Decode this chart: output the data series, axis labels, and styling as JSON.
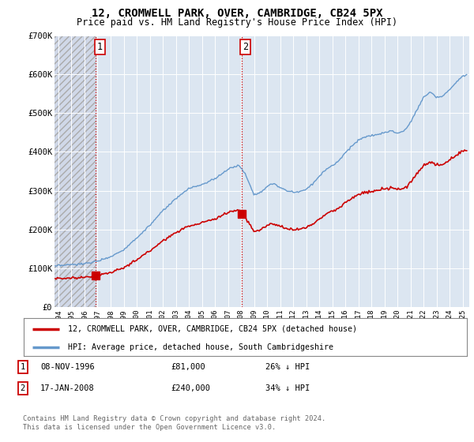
{
  "title": "12, CROMWELL PARK, OVER, CAMBRIDGE, CB24 5PX",
  "subtitle": "Price paid vs. HM Land Registry's House Price Index (HPI)",
  "background_color": "#ffffff",
  "plot_bg_color": "#dce6f1",
  "hatch_color": "#c0cfe0",
  "grid_color": "#ffffff",
  "hpi_color": "#6699cc",
  "price_color": "#cc0000",
  "ylim": [
    0,
    700000
  ],
  "xlim_start": 1993.7,
  "xlim_end": 2025.5,
  "sale1_x": 1996.854,
  "sale1_y": 81000,
  "sale2_x": 2008.046,
  "sale2_y": 240000,
  "xticks": [
    1994,
    1995,
    1996,
    1997,
    1998,
    1999,
    2000,
    2001,
    2002,
    2003,
    2004,
    2005,
    2006,
    2007,
    2008,
    2009,
    2010,
    2011,
    2012,
    2013,
    2014,
    2015,
    2016,
    2017,
    2018,
    2019,
    2020,
    2021,
    2022,
    2023,
    2024,
    2025
  ],
  "legend_label_price": "12, CROMWELL PARK, OVER, CAMBRIDGE, CB24 5PX (detached house)",
  "legend_label_hpi": "HPI: Average price, detached house, South Cambridgeshire",
  "footer": "Contains HM Land Registry data © Crown copyright and database right 2024.\nThis data is licensed under the Open Government Licence v3.0."
}
